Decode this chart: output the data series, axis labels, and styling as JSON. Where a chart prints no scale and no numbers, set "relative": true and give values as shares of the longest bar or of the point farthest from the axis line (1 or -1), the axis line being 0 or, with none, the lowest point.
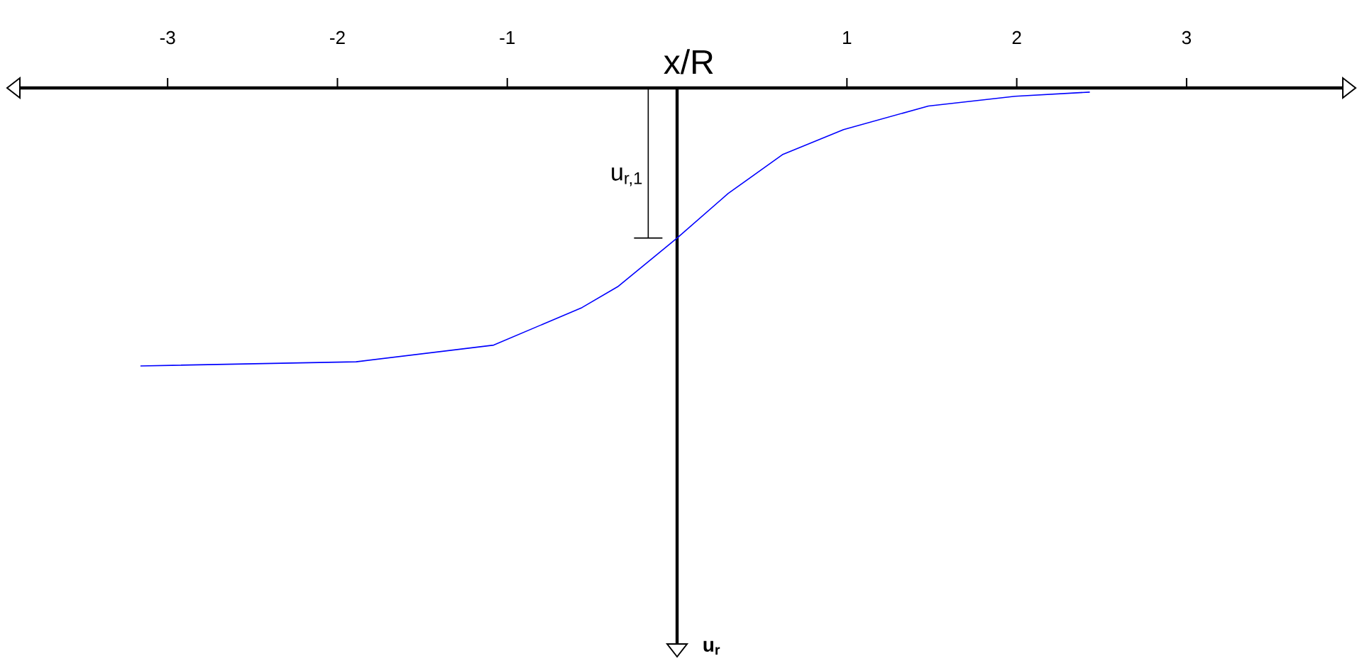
{
  "chart_data": {
    "type": "line",
    "relative": true,
    "xlabel": "x/R",
    "xlim": [
      -3.87,
      3.92
    ],
    "xticks": [
      {
        "value": -3,
        "label": "-3"
      },
      {
        "value": -2,
        "label": "-2"
      },
      {
        "value": -1,
        "label": "-1"
      },
      {
        "value": 1,
        "label": "1"
      },
      {
        "value": 2,
        "label": "2"
      },
      {
        "value": 3,
        "label": "3"
      }
    ],
    "x": [
      -3.16,
      -1.89,
      -1.08,
      -0.56,
      -0.35,
      0,
      0.3,
      0.62,
      0.98,
      1.48,
      1.99,
      2.43
    ],
    "series": [
      {
        "color": "#0000ff",
        "values": [
          -1.0,
          -0.985,
          -0.925,
          -0.79,
          -0.715,
          -0.54,
          -0.38,
          -0.24,
          -0.15,
          -0.065,
          -0.03,
          -0.015
        ]
      }
    ],
    "annotations": [
      "u$_{r,1}$",
      "u$_{r}$"
    ],
    "grid": false,
    "legend": false,
    "marker": "none",
    "line_style": "solid"
  }
}
